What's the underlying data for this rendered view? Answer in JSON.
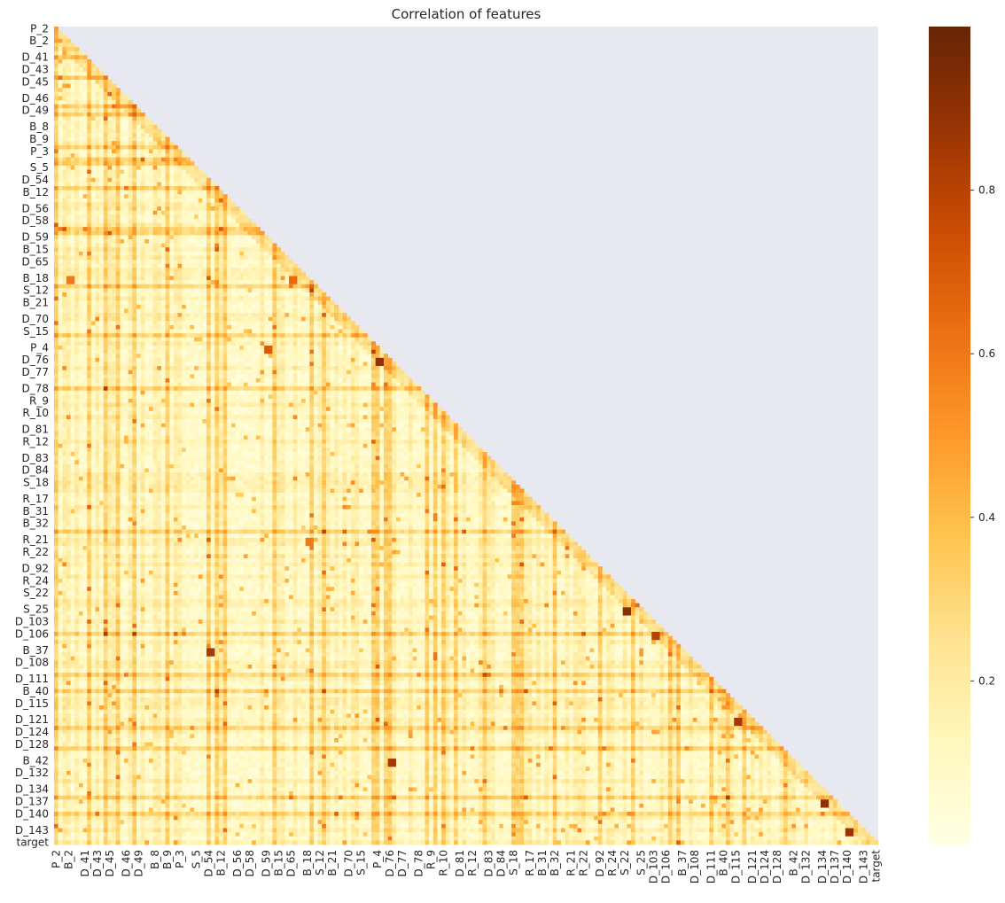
{
  "chart_data": {
    "type": "heatmap",
    "subtype": "lower-triangle correlation matrix",
    "title": "Correlation of features",
    "xlabel": "",
    "ylabel": "",
    "features": [
      "P_2",
      "B_2",
      "D_41",
      "D_43",
      "D_45",
      "D_46",
      "D_49",
      "B_8",
      "B_9",
      "P_3",
      "S_5",
      "D_54",
      "B_12",
      "D_56",
      "D_58",
      "D_59",
      "B_15",
      "D_65",
      "B_18",
      "S_12",
      "B_21",
      "D_70",
      "S_15",
      "P_4",
      "D_76",
      "D_77",
      "D_78",
      "R_9",
      "R_10",
      "D_81",
      "R_12",
      "D_83",
      "D_84",
      "S_18",
      "R_17",
      "B_31",
      "B_32",
      "R_21",
      "R_22",
      "D_92",
      "R_24",
      "S_22",
      "S_25",
      "D_103",
      "D_106",
      "B_37",
      "D_108",
      "D_111",
      "B_40",
      "D_115",
      "D_121",
      "D_124",
      "D_128",
      "B_42",
      "D_132",
      "D_134",
      "D_137",
      "D_140",
      "D_143",
      "target"
    ],
    "colorbar": {
      "ticks": [
        0.2,
        0.4,
        0.6,
        0.8
      ],
      "tick_labels": [
        "0.2",
        "0.4",
        "0.6",
        "0.8"
      ],
      "range": [
        0.0,
        1.0
      ]
    },
    "colors": {
      "background_masked": "#e8e8f0",
      "scale": [
        "#ffffe5",
        "#fff7bc",
        "#fee391",
        "#fec44f",
        "#fe9929",
        "#ec7014",
        "#cc4c02",
        "#993404",
        "#662506"
      ]
    },
    "notable_cells": [
      {
        "row": "B_18",
        "col": "B_2",
        "value": 0.6
      },
      {
        "row": "B_18",
        "col": "D_65",
        "value": 0.65
      },
      {
        "row": "P_4",
        "col": "D_59",
        "value": 0.7
      },
      {
        "row": "D_76",
        "col": "P_4",
        "value": 0.9
      },
      {
        "row": "S_25",
        "col": "S_22",
        "value": 0.92
      },
      {
        "row": "D_106",
        "col": "D_103",
        "value": 0.8
      },
      {
        "row": "D_121",
        "col": "D_115",
        "value": 0.85
      },
      {
        "row": "D_137",
        "col": "D_134",
        "value": 0.9
      },
      {
        "row": "D_143",
        "col": "D_140",
        "value": 0.88
      },
      {
        "row": "B_42",
        "col": "D_76",
        "value": 0.85
      },
      {
        "row": "R_21",
        "col": "B_18",
        "value": 0.6
      },
      {
        "row": "B_37",
        "col": "D_54",
        "value": 0.85
      }
    ]
  }
}
